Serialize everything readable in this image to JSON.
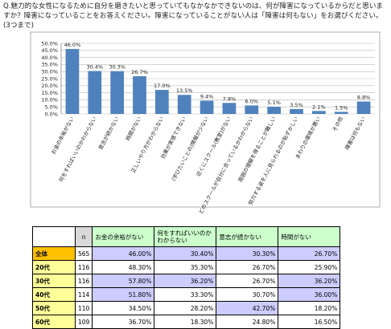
{
  "question": "Q.魅力的な女性になるために自分を磨きたいと思っていてもなかなかできないのは、何が障害になっているからだと思いますか？障害になっていることをお答えください。障害になっていることがない人は「障害は何もない」をお選びください。(3つまで)",
  "chart_data": {
    "type": "bar",
    "categories": [
      "お金の余裕がない",
      "何をすればいいのかわからない",
      "意志が続かない",
      "時間がない",
      "正しいやり方がわからない",
      "効果が実感できない",
      "(学びたいことの)情報が少ない",
      "近くにスクール(教室)がない",
      "どのスクールが自分に合っているかわからない",
      "周囲の理解を得ることが難しい",
      "努力する姿を人に見られるのが恥ずかしい",
      "まわりの環境が悪い",
      "その他",
      "障害は何もない"
    ],
    "values": [
      46.0,
      30.4,
      30.3,
      26.7,
      17.0,
      13.5,
      9.4,
      7.8,
      6.0,
      5.1,
      3.5,
      2.1,
      1.5,
      8.8
    ],
    "value_labels": [
      "46.0%",
      "30.4%",
      "30.3%",
      "26.7%",
      "17.0%",
      "13.5%",
      "9.4%",
      "7.8%",
      "6.0%",
      "5.1%",
      "3.5%",
      "2.1%",
      "1.5%",
      "8.8%"
    ],
    "color": "#4f81bd",
    "ylim": [
      0,
      50
    ],
    "yticks": [
      {
        "value": 0,
        "label": "0.0%"
      },
      {
        "value": 5,
        "label": "5.0%"
      },
      {
        "value": 10,
        "label": "10.0%"
      },
      {
        "value": 15,
        "label": "15.0%"
      },
      {
        "value": 20,
        "label": "20.0%"
      },
      {
        "value": 25,
        "label": "25.0%"
      },
      {
        "value": 30,
        "label": "30.0%"
      },
      {
        "value": 35,
        "label": "35.0%"
      },
      {
        "value": 40,
        "label": "40.0%"
      },
      {
        "value": 45,
        "label": "45.0%"
      },
      {
        "value": 50,
        "label": "50.0%"
      }
    ],
    "grid": true
  },
  "table": {
    "header": [
      "",
      "n",
      "お金の余裕がない",
      "何をすればいいのかわからない",
      "意志が続かない",
      "時間がない"
    ],
    "rows": [
      [
        "全体",
        "565",
        "46.00%",
        "30.40%",
        "30.30%",
        "26.70%"
      ],
      [
        "20代",
        "116",
        "48.30%",
        "35.30%",
        "26.70%",
        "25.90%"
      ],
      [
        "30代",
        "116",
        "57.80%",
        "36.20%",
        "26.70%",
        "36.20%"
      ],
      [
        "40代",
        "114",
        "51.80%",
        "33.30%",
        "30.70%",
        "36.00%"
      ],
      [
        "50代",
        "110",
        "34.50%",
        "28.20%",
        "42.70%",
        "18.20%"
      ],
      [
        "60代",
        "109",
        "36.70%",
        "18.30%",
        "24.80%",
        "16.50%"
      ]
    ]
  }
}
